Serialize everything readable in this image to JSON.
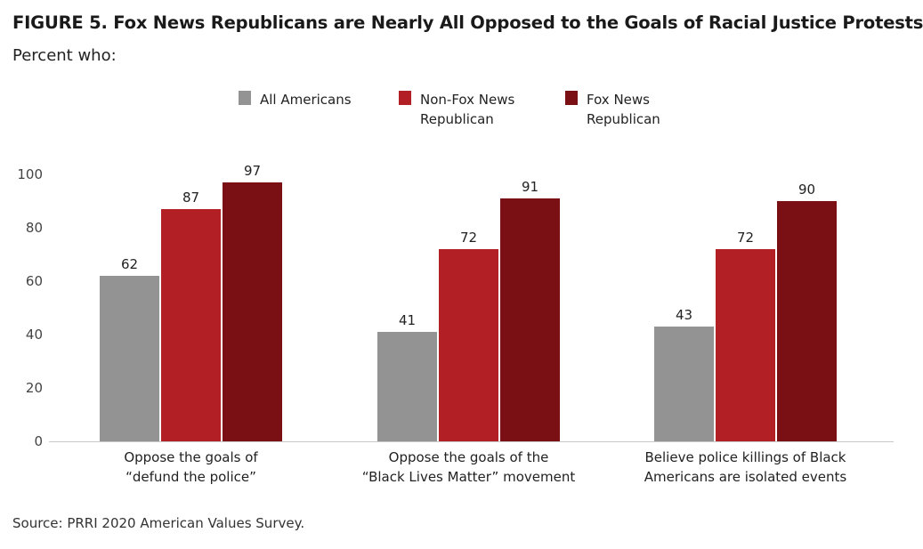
{
  "title": "FIGURE 5. Fox News Republicans are Nearly All Opposed to the Goals of Racial Justice Protests",
  "subtitle": "Percent who:",
  "source": "Source: PRRI 2020 American Values Survey.",
  "chart_data": {
    "type": "bar",
    "categories": [
      [
        "Oppose the goals of",
        "“defund the police”"
      ],
      [
        "Oppose the goals of the",
        "“Black Lives Matter” movement"
      ],
      [
        "Believe police killings of Black",
        "Americans are isolated events"
      ]
    ],
    "series": [
      {
        "name": [
          "All Americans"
        ],
        "color": "#939393",
        "values": [
          62,
          41,
          43
        ]
      },
      {
        "name": [
          "Non-Fox News",
          "Republican"
        ],
        "color": "#b22025",
        "values": [
          87,
          72,
          72
        ]
      },
      {
        "name": [
          "Fox News",
          "Republican"
        ],
        "color": "#7b1014",
        "values": [
          97,
          91,
          90
        ]
      }
    ],
    "yticks": [
      0,
      20,
      40,
      60,
      80,
      100
    ],
    "ylim": [
      0,
      100
    ],
    "grid": false,
    "legend_position": "top-center",
    "data_labels": true
  }
}
